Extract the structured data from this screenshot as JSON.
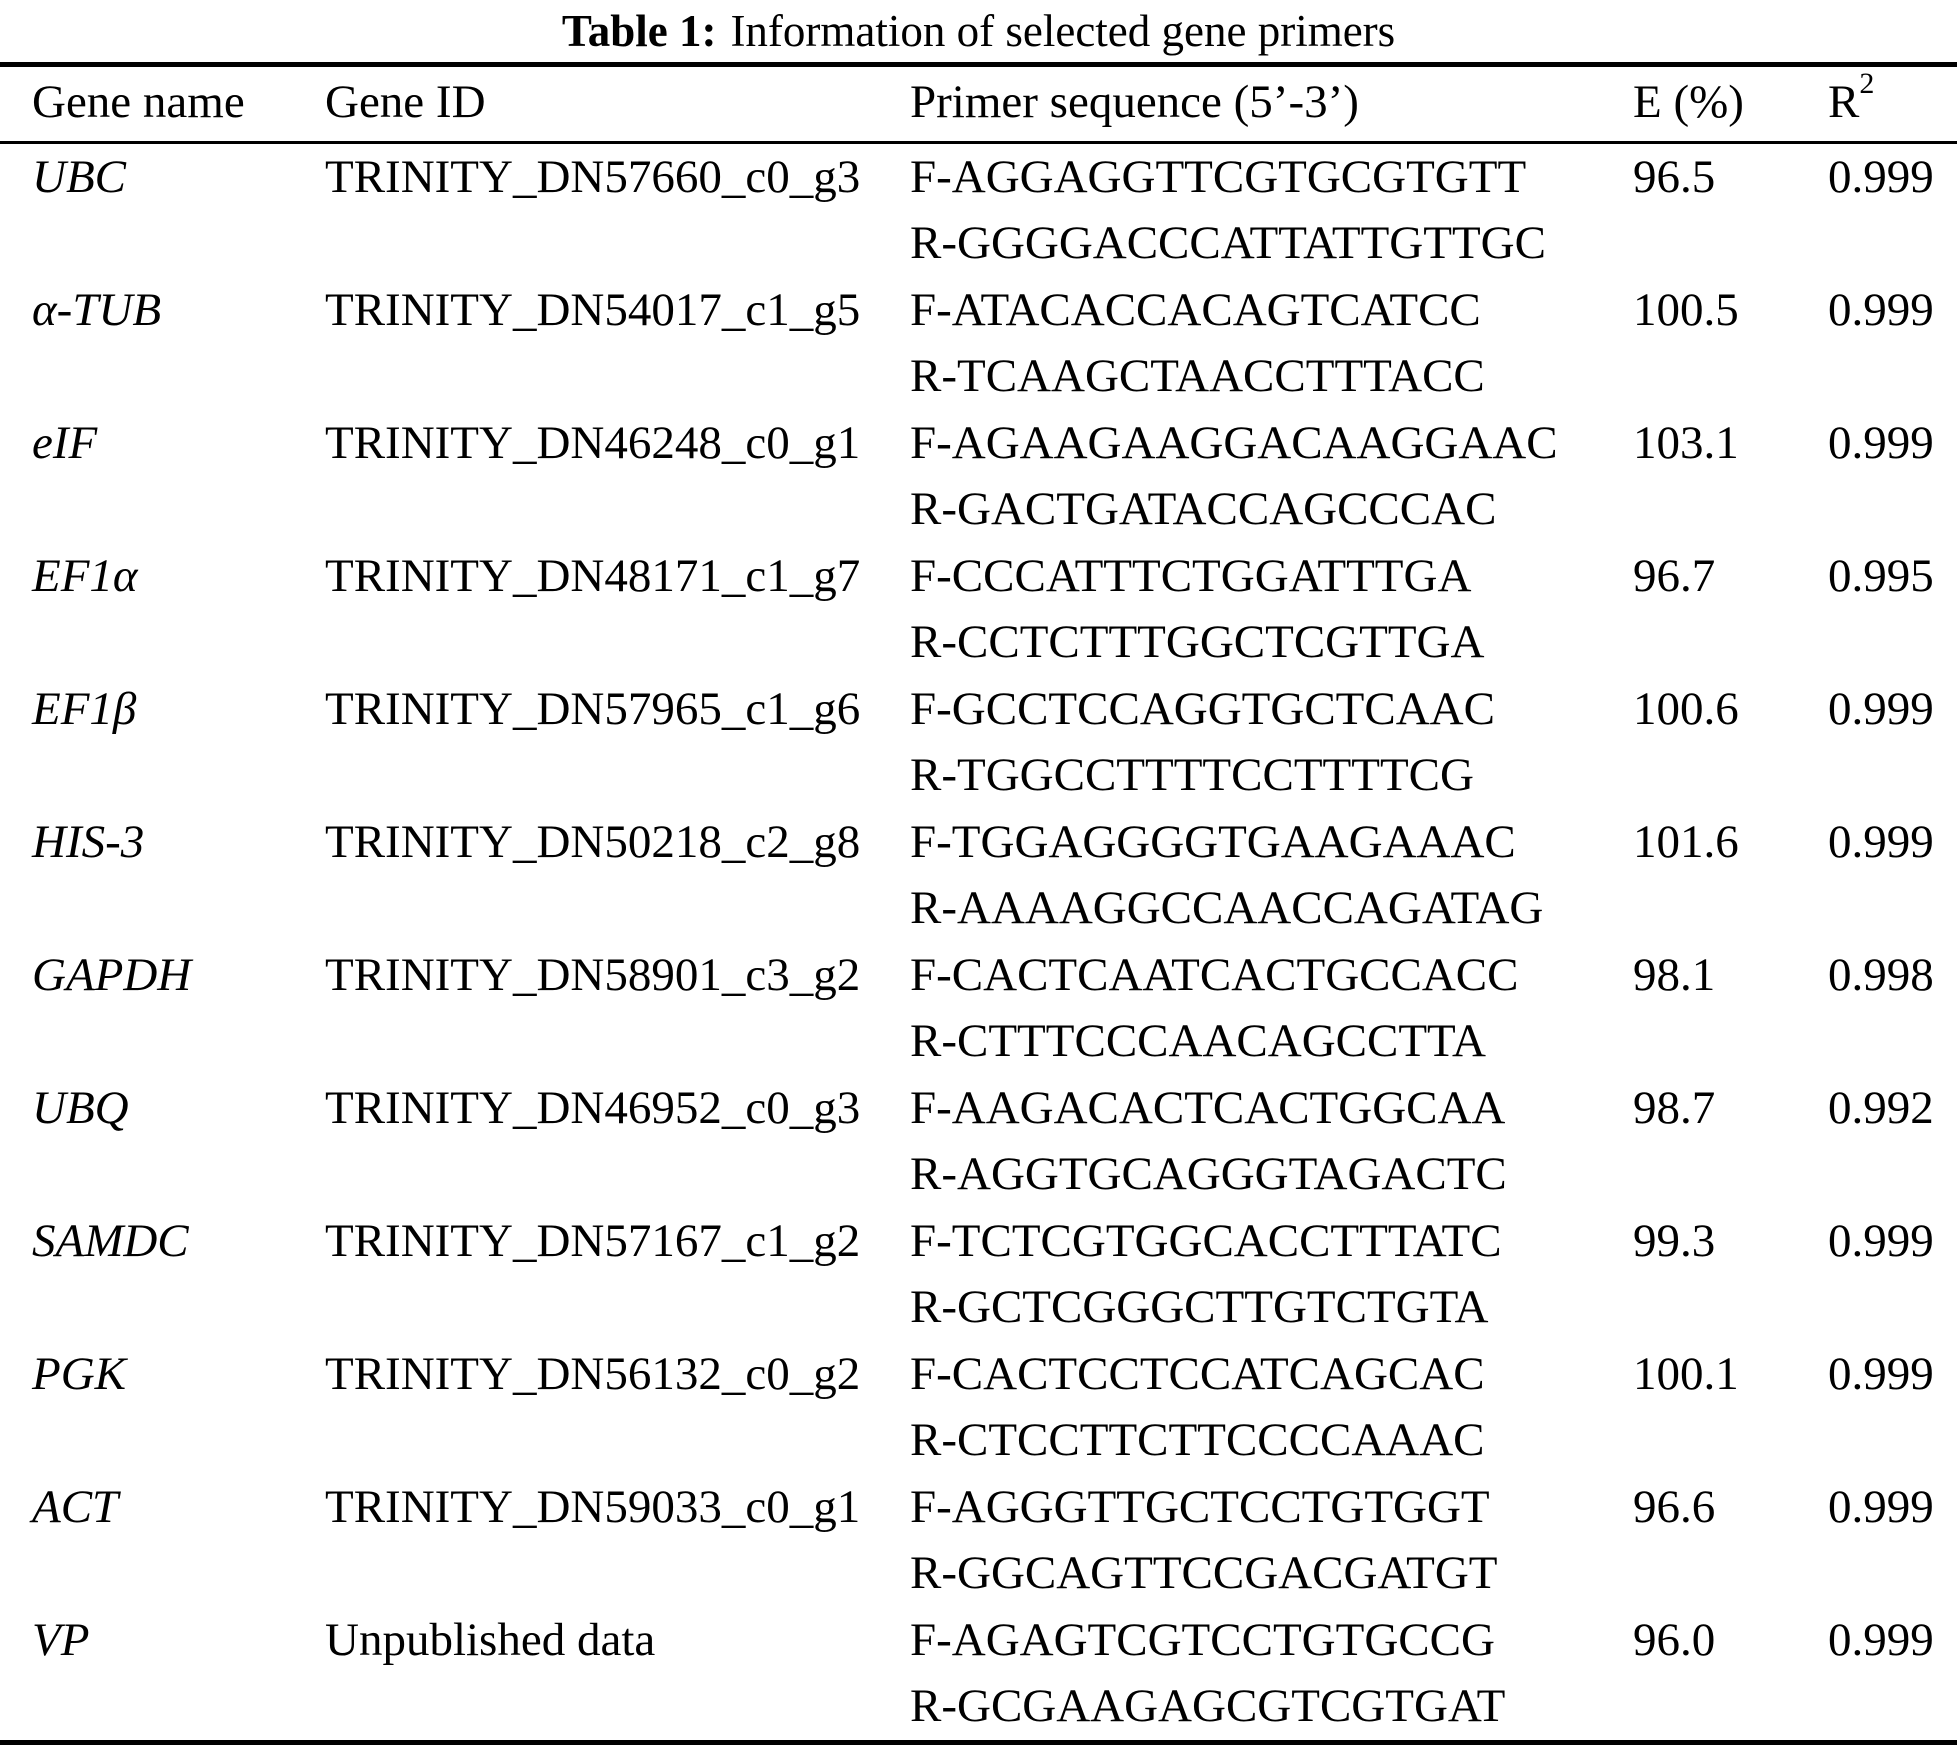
{
  "title": {
    "label": "Table 1:",
    "text": "Information of selected gene primers"
  },
  "table": {
    "headers": {
      "gene_name": "Gene name",
      "gene_id": "Gene ID",
      "primer": "Primer sequence (5’-3’)",
      "efficiency": "E (%)",
      "r2_base": "R",
      "r2_sup": "2"
    },
    "rows": [
      {
        "gene_name": "UBC",
        "gene_id": "TRINITY_DN57660_c0_g3",
        "forward": "F-AGGAGGTTCGTGCGTGTT",
        "reverse": "R-GGGGACCCATTATTGTTGC",
        "e_percent": "96.5",
        "r2": "0.999"
      },
      {
        "gene_name": "α-TUB",
        "gene_id": "TRINITY_DN54017_c1_g5",
        "forward": "F-ATACACCACAGTCATCC",
        "reverse": "R-TCAAGCTAACCTTTACC",
        "e_percent": "100.5",
        "r2": "0.999"
      },
      {
        "gene_name": "eIF",
        "gene_id": "TRINITY_DN46248_c0_g1",
        "forward": "F-AGAAGAAGGACAAGGAAC",
        "reverse": "R-GACTGATACCAGCCCAC",
        "e_percent": "103.1",
        "r2": "0.999"
      },
      {
        "gene_name": "EF1α",
        "gene_id": "TRINITY_DN48171_c1_g7",
        "forward": "F-CCCATTTCTGGATTTGA",
        "reverse": "R-CCTCTTTGGCTCGTTGA",
        "e_percent": "96.7",
        "r2": "0.995"
      },
      {
        "gene_name": "EF1β",
        "gene_id": "TRINITY_DN57965_c1_g6",
        "forward": "F-GCCTCCAGGTGCTCAAC",
        "reverse": "R-TGGCCTTTTCCTTTTCG",
        "e_percent": "100.6",
        "r2": "0.999"
      },
      {
        "gene_name": "HIS-3",
        "gene_id": "TRINITY_DN50218_c2_g8",
        "forward": "F-TGGAGGGGTGAAGAAAC",
        "reverse": "R-AAAAGGCCAACCAGATAG",
        "e_percent": "101.6",
        "r2": "0.999"
      },
      {
        "gene_name": "GAPDH",
        "gene_id": "TRINITY_DN58901_c3_g2",
        "forward": "F-CACTCAATCACTGCCACC",
        "reverse": "R-CTTTCCCAACAGCCTTA",
        "e_percent": "98.1",
        "r2": "0.998"
      },
      {
        "gene_name": "UBQ",
        "gene_id": "TRINITY_DN46952_c0_g3",
        "forward": "F-AAGACACTCACTGGCAA",
        "reverse": "R-AGGTGCAGGGTAGACTC",
        "e_percent": "98.7",
        "r2": "0.992"
      },
      {
        "gene_name": "SAMDC",
        "gene_id": "TRINITY_DN57167_c1_g2",
        "forward": "F-TCTCGTGGCACCTTTATC",
        "reverse": "R-GCTCGGGCTTGTCTGTA",
        "e_percent": "99.3",
        "r2": "0.999"
      },
      {
        "gene_name": "PGK",
        "gene_id": "TRINITY_DN56132_c0_g2",
        "forward": "F-CACTCCTCCATCAGCAC",
        "reverse": "R-CTCCTTCTTCCCCAAAC",
        "e_percent": "100.1",
        "r2": "0.999"
      },
      {
        "gene_name": "ACT",
        "gene_id": "TRINITY_DN59033_c0_g1",
        "forward": "F-AGGGTTGCTCCTGTGGT",
        "reverse": "R-GGCAGTTCCGACGATGT",
        "e_percent": "96.6",
        "r2": "0.999"
      },
      {
        "gene_name": "VP",
        "gene_id": "Unpublished data",
        "forward": "F-AGAGTCGTCCTGTGCCG",
        "reverse": "R-GCGAAGAGCGTCGTGAT",
        "e_percent": "96.0",
        "r2": "0.999"
      }
    ]
  }
}
